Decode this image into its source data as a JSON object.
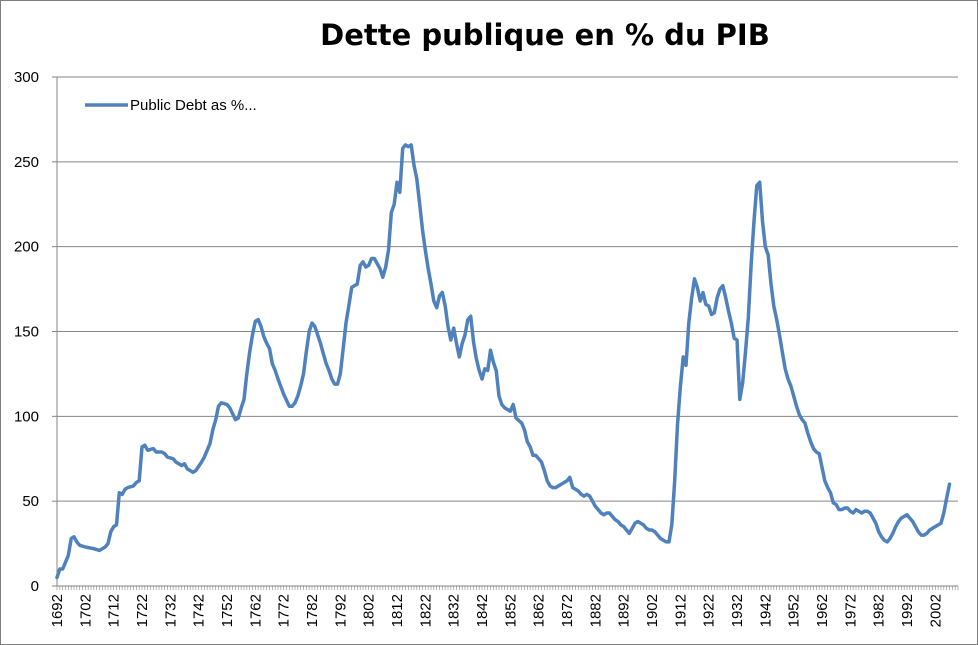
{
  "chart_data": {
    "type": "line",
    "title": "Dette publique en % du PIB",
    "xlabel": "",
    "ylabel": "",
    "xlim": [
      1692,
      2010
    ],
    "ylim": [
      0,
      300
    ],
    "y_ticks": [
      "0",
      "50",
      "100",
      "150",
      "200",
      "250",
      "300"
    ],
    "x_ticks": [
      "1692",
      "1702",
      "1712",
      "1722",
      "1732",
      "1742",
      "1752",
      "1762",
      "1772",
      "1782",
      "1792",
      "1802",
      "1812",
      "1822",
      "1832",
      "1842",
      "1852",
      "1862",
      "1872",
      "1882",
      "1892",
      "1902",
      "1912",
      "1922",
      "1932",
      "1942",
      "1952",
      "1962",
      "1972",
      "1982",
      "1992",
      "2002"
    ],
    "grid": "horizontal",
    "legend_position": "top-left",
    "line_color": "#4f81bd",
    "series": [
      {
        "name": "Public Debt as %...",
        "points": [
          [
            1692,
            5
          ],
          [
            1693,
            10
          ],
          [
            1694,
            10
          ],
          [
            1695,
            14
          ],
          [
            1696,
            18
          ],
          [
            1697,
            28
          ],
          [
            1698,
            29
          ],
          [
            1699,
            26
          ],
          [
            1700,
            24
          ],
          [
            1702,
            23
          ],
          [
            1705,
            22
          ],
          [
            1707,
            21
          ],
          [
            1709,
            23
          ],
          [
            1710,
            25
          ],
          [
            1711,
            32
          ],
          [
            1712,
            35
          ],
          [
            1713,
            36
          ],
          [
            1714,
            55
          ],
          [
            1715,
            54
          ],
          [
            1716,
            57
          ],
          [
            1717,
            58
          ],
          [
            1719,
            59
          ],
          [
            1720,
            61
          ],
          [
            1721,
            62
          ],
          [
            1722,
            82
          ],
          [
            1723,
            83
          ],
          [
            1724,
            80
          ],
          [
            1726,
            81
          ],
          [
            1727,
            79
          ],
          [
            1729,
            79
          ],
          [
            1730,
            78
          ],
          [
            1731,
            76
          ],
          [
            1733,
            75
          ],
          [
            1734,
            73
          ],
          [
            1736,
            71
          ],
          [
            1737,
            72
          ],
          [
            1738,
            69
          ],
          [
            1740,
            67
          ],
          [
            1741,
            68
          ],
          [
            1743,
            73
          ],
          [
            1744,
            76
          ],
          [
            1746,
            84
          ],
          [
            1747,
            92
          ],
          [
            1748,
            98
          ],
          [
            1749,
            106
          ],
          [
            1750,
            108
          ],
          [
            1752,
            107
          ],
          [
            1753,
            105
          ],
          [
            1755,
            98
          ],
          [
            1756,
            99
          ],
          [
            1757,
            105
          ],
          [
            1758,
            110
          ],
          [
            1759,
            125
          ],
          [
            1760,
            138
          ],
          [
            1761,
            148
          ],
          [
            1762,
            156
          ],
          [
            1763,
            157
          ],
          [
            1764,
            153
          ],
          [
            1765,
            147
          ],
          [
            1766,
            143
          ],
          [
            1767,
            140
          ],
          [
            1768,
            131
          ],
          [
            1769,
            127
          ],
          [
            1770,
            122
          ],
          [
            1772,
            113
          ],
          [
            1774,
            106
          ],
          [
            1775,
            106
          ],
          [
            1776,
            108
          ],
          [
            1777,
            112
          ],
          [
            1778,
            118
          ],
          [
            1779,
            125
          ],
          [
            1780,
            138
          ],
          [
            1781,
            150
          ],
          [
            1782,
            155
          ],
          [
            1783,
            153
          ],
          [
            1784,
            148
          ],
          [
            1785,
            143
          ],
          [
            1786,
            137
          ],
          [
            1787,
            131
          ],
          [
            1788,
            127
          ],
          [
            1789,
            122
          ],
          [
            1790,
            119
          ],
          [
            1791,
            119
          ],
          [
            1792,
            125
          ],
          [
            1793,
            140
          ],
          [
            1794,
            155
          ],
          [
            1795,
            165
          ],
          [
            1796,
            176
          ],
          [
            1797,
            177
          ],
          [
            1798,
            178
          ],
          [
            1799,
            189
          ],
          [
            1800,
            191
          ],
          [
            1801,
            188
          ],
          [
            1802,
            189
          ],
          [
            1803,
            193
          ],
          [
            1804,
            193
          ],
          [
            1805,
            190
          ],
          [
            1806,
            187
          ],
          [
            1807,
            182
          ],
          [
            1808,
            188
          ],
          [
            1809,
            198
          ],
          [
            1810,
            220
          ],
          [
            1811,
            225
          ],
          [
            1812,
            238
          ],
          [
            1813,
            232
          ],
          [
            1814,
            258
          ],
          [
            1815,
            260
          ],
          [
            1816,
            259
          ],
          [
            1817,
            260
          ],
          [
            1818,
            248
          ],
          [
            1819,
            240
          ],
          [
            1820,
            225
          ],
          [
            1821,
            210
          ],
          [
            1822,
            198
          ],
          [
            1823,
            187
          ],
          [
            1824,
            178
          ],
          [
            1825,
            168
          ],
          [
            1826,
            164
          ],
          [
            1827,
            171
          ],
          [
            1828,
            173
          ],
          [
            1829,
            165
          ],
          [
            1830,
            153
          ],
          [
            1831,
            145
          ],
          [
            1832,
            152
          ],
          [
            1833,
            143
          ],
          [
            1834,
            135
          ],
          [
            1835,
            143
          ],
          [
            1836,
            148
          ],
          [
            1837,
            157
          ],
          [
            1838,
            159
          ],
          [
            1839,
            144
          ],
          [
            1840,
            134
          ],
          [
            1841,
            127
          ],
          [
            1842,
            122
          ],
          [
            1843,
            128
          ],
          [
            1844,
            127
          ],
          [
            1845,
            139
          ],
          [
            1846,
            132
          ],
          [
            1847,
            127
          ],
          [
            1848,
            112
          ],
          [
            1849,
            107
          ],
          [
            1850,
            105
          ],
          [
            1851,
            104
          ],
          [
            1852,
            103
          ],
          [
            1853,
            107
          ],
          [
            1854,
            99
          ],
          [
            1856,
            96
          ],
          [
            1857,
            92
          ],
          [
            1858,
            85
          ],
          [
            1859,
            82
          ],
          [
            1860,
            77
          ],
          [
            1861,
            77
          ],
          [
            1862,
            75
          ],
          [
            1863,
            73
          ],
          [
            1864,
            68
          ],
          [
            1865,
            62
          ],
          [
            1866,
            59
          ],
          [
            1867,
            58
          ],
          [
            1868,
            58
          ],
          [
            1869,
            59
          ],
          [
            1870,
            60
          ],
          [
            1871,
            61
          ],
          [
            1872,
            62
          ],
          [
            1873,
            64
          ],
          [
            1874,
            58
          ],
          [
            1875,
            57
          ],
          [
            1876,
            56
          ],
          [
            1877,
            54
          ],
          [
            1878,
            53
          ],
          [
            1879,
            54
          ],
          [
            1880,
            53
          ],
          [
            1881,
            50
          ],
          [
            1882,
            47
          ],
          [
            1883,
            45
          ],
          [
            1884,
            43
          ],
          [
            1885,
            42
          ],
          [
            1886,
            43
          ],
          [
            1887,
            43
          ],
          [
            1888,
            41
          ],
          [
            1889,
            39
          ],
          [
            1890,
            38
          ],
          [
            1891,
            36
          ],
          [
            1892,
            35
          ],
          [
            1893,
            33
          ],
          [
            1894,
            31
          ],
          [
            1895,
            34
          ],
          [
            1896,
            37
          ],
          [
            1897,
            38
          ],
          [
            1898,
            37
          ],
          [
            1899,
            36
          ],
          [
            1900,
            34
          ],
          [
            1901,
            33
          ],
          [
            1902,
            33
          ],
          [
            1903,
            32
          ],
          [
            1904,
            30
          ],
          [
            1905,
            28
          ],
          [
            1906,
            27
          ],
          [
            1907,
            26
          ],
          [
            1908,
            26
          ],
          [
            1909,
            36
          ],
          [
            1910,
            62
          ],
          [
            1911,
            95
          ],
          [
            1912,
            117
          ],
          [
            1913,
            135
          ],
          [
            1914,
            130
          ],
          [
            1915,
            155
          ],
          [
            1916,
            170
          ],
          [
            1917,
            181
          ],
          [
            1918,
            176
          ],
          [
            1919,
            168
          ],
          [
            1920,
            173
          ],
          [
            1921,
            166
          ],
          [
            1922,
            165
          ],
          [
            1923,
            160
          ],
          [
            1924,
            161
          ],
          [
            1925,
            170
          ],
          [
            1926,
            175
          ],
          [
            1927,
            177
          ],
          [
            1928,
            170
          ],
          [
            1929,
            162
          ],
          [
            1930,
            155
          ],
          [
            1931,
            146
          ],
          [
            1932,
            145
          ],
          [
            1933,
            110
          ],
          [
            1934,
            120
          ],
          [
            1935,
            138
          ],
          [
            1936,
            158
          ],
          [
            1937,
            190
          ],
          [
            1938,
            215
          ],
          [
            1939,
            236
          ],
          [
            1940,
            238
          ],
          [
            1941,
            215
          ],
          [
            1942,
            200
          ],
          [
            1943,
            195
          ],
          [
            1944,
            178
          ],
          [
            1945,
            165
          ],
          [
            1946,
            157
          ],
          [
            1947,
            148
          ],
          [
            1948,
            138
          ],
          [
            1949,
            128
          ],
          [
            1950,
            122
          ],
          [
            1951,
            118
          ],
          [
            1952,
            112
          ],
          [
            1953,
            106
          ],
          [
            1954,
            101
          ],
          [
            1955,
            98
          ],
          [
            1956,
            96
          ],
          [
            1957,
            90
          ],
          [
            1958,
            85
          ],
          [
            1959,
            81
          ],
          [
            1960,
            79
          ],
          [
            1961,
            78
          ],
          [
            1962,
            70
          ],
          [
            1963,
            62
          ],
          [
            1964,
            58
          ],
          [
            1965,
            55
          ],
          [
            1966,
            49
          ],
          [
            1967,
            48
          ],
          [
            1968,
            45
          ],
          [
            1969,
            45
          ],
          [
            1970,
            46
          ],
          [
            1971,
            46
          ],
          [
            1972,
            44
          ],
          [
            1973,
            43
          ],
          [
            1974,
            45
          ],
          [
            1975,
            44
          ],
          [
            1976,
            43
          ],
          [
            1977,
            44
          ],
          [
            1978,
            44
          ],
          [
            1979,
            43
          ],
          [
            1980,
            40
          ],
          [
            1981,
            37
          ],
          [
            1982,
            32
          ],
          [
            1983,
            29
          ],
          [
            1984,
            27
          ],
          [
            1985,
            26
          ],
          [
            1986,
            28
          ],
          [
            1987,
            31
          ],
          [
            1988,
            35
          ],
          [
            1989,
            38
          ],
          [
            1990,
            40
          ],
          [
            1991,
            41
          ],
          [
            1992,
            42
          ],
          [
            1993,
            40
          ],
          [
            1994,
            38
          ],
          [
            1995,
            35
          ],
          [
            1996,
            32
          ],
          [
            1997,
            30
          ],
          [
            1998,
            30
          ],
          [
            1999,
            31
          ],
          [
            2000,
            33
          ],
          [
            2001,
            34
          ],
          [
            2002,
            35
          ],
          [
            2003,
            36
          ],
          [
            2004,
            37
          ],
          [
            2005,
            43
          ],
          [
            2006,
            52
          ],
          [
            2007,
            60
          ]
        ]
      }
    ]
  }
}
